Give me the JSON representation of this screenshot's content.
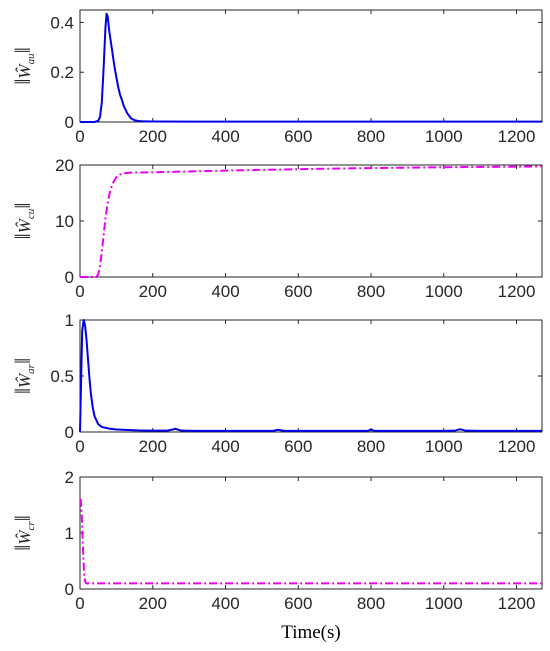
{
  "chart_data": [
    {
      "type": "line",
      "ylabel": {
        "base": "W",
        "sub": "au"
      },
      "xlim": [
        0,
        1270
      ],
      "ylim": [
        0,
        0.45
      ],
      "xticks": [
        0,
        200,
        400,
        600,
        800,
        1000,
        1200
      ],
      "yticks": [
        0,
        0.2,
        0.4
      ],
      "ytick_labels": [
        "0",
        "0.2",
        "0.4"
      ],
      "series": [
        {
          "color": "#0000ee",
          "style": "solid",
          "x": [
            0,
            40,
            50,
            55,
            60,
            65,
            70,
            73,
            76,
            80,
            85,
            90,
            95,
            100,
            105,
            110,
            115,
            120,
            130,
            140,
            150,
            160,
            170,
            200,
            300,
            400,
            600,
            800,
            1000,
            1270
          ],
          "y": [
            0,
            0,
            0.005,
            0.02,
            0.08,
            0.22,
            0.38,
            0.435,
            0.425,
            0.37,
            0.32,
            0.27,
            0.22,
            0.18,
            0.14,
            0.11,
            0.09,
            0.065,
            0.035,
            0.015,
            0.007,
            0.004,
            0.003,
            0.002,
            0.0015,
            0.0015,
            0.0015,
            0.0015,
            0.0015,
            0.0015
          ]
        }
      ]
    },
    {
      "type": "line",
      "ylabel": {
        "base": "W",
        "sub": "cu"
      },
      "xlim": [
        0,
        1270
      ],
      "ylim": [
        0,
        20
      ],
      "xticks": [
        0,
        200,
        400,
        600,
        800,
        1000,
        1200
      ],
      "yticks": [
        0,
        10,
        20
      ],
      "ytick_labels": [
        "0",
        "10",
        "20"
      ],
      "series": [
        {
          "color": "#ee00ee",
          "style": "dashdot",
          "x": [
            0,
            45,
            50,
            55,
            60,
            65,
            70,
            75,
            80,
            85,
            90,
            95,
            100,
            110,
            120,
            130,
            150,
            200,
            300,
            400,
            600,
            800,
            1000,
            1200,
            1270
          ],
          "y": [
            0,
            0,
            0.5,
            2,
            4.5,
            7.5,
            10.5,
            12.8,
            14.6,
            15.8,
            16.7,
            17.3,
            17.8,
            18.3,
            18.5,
            18.6,
            18.65,
            18.7,
            18.85,
            19.0,
            19.25,
            19.45,
            19.6,
            19.7,
            19.75
          ]
        }
      ]
    },
    {
      "type": "line",
      "ylabel": {
        "base": "W",
        "sub": "ar"
      },
      "xlim": [
        0,
        1270
      ],
      "ylim": [
        0,
        1
      ],
      "xticks": [
        0,
        200,
        400,
        600,
        800,
        1000,
        1200
      ],
      "yticks": [
        0,
        0.5,
        1
      ],
      "ytick_labels": [
        "0",
        "0.5",
        "1"
      ],
      "series": [
        {
          "color": "#0000ee",
          "style": "solid",
          "x": [
            0,
            3,
            6,
            10,
            14,
            18,
            22,
            26,
            30,
            35,
            40,
            50,
            60,
            80,
            100,
            130,
            160,
            200,
            240,
            255,
            262,
            270,
            280,
            320,
            400,
            500,
            530,
            545,
            560,
            600,
            700,
            790,
            800,
            810,
            820,
            900,
            1000,
            1030,
            1045,
            1060,
            1100,
            1200,
            1270
          ],
          "y": [
            0,
            0.45,
            0.9,
            1.0,
            0.95,
            0.82,
            0.65,
            0.48,
            0.34,
            0.22,
            0.14,
            0.07,
            0.045,
            0.03,
            0.022,
            0.018,
            0.014,
            0.012,
            0.012,
            0.022,
            0.03,
            0.02,
            0.012,
            0.01,
            0.01,
            0.01,
            0.01,
            0.02,
            0.01,
            0.01,
            0.01,
            0.01,
            0.022,
            0.01,
            0.01,
            0.01,
            0.01,
            0.012,
            0.025,
            0.012,
            0.01,
            0.01,
            0.01
          ]
        }
      ]
    },
    {
      "type": "line",
      "ylabel": {
        "base": "W",
        "sub": "cr"
      },
      "xlabel": "Time(s)",
      "xlim": [
        0,
        1270
      ],
      "ylim": [
        0,
        2
      ],
      "xticks": [
        0,
        200,
        400,
        600,
        800,
        1000,
        1200
      ],
      "yticks": [
        0,
        1,
        2
      ],
      "ytick_labels": [
        "0",
        "1",
        "2"
      ],
      "series": [
        {
          "color": "#ee00ee",
          "style": "dashdot",
          "x": [
            0,
            2,
            5,
            8,
            11,
            14,
            17,
            20,
            30,
            100,
            400,
            800,
            1200,
            1270
          ],
          "y": [
            1.6,
            1.6,
            1.3,
            0.75,
            0.3,
            0.14,
            0.1,
            0.1,
            0.1,
            0.1,
            0.1,
            0.1,
            0.1,
            0.1
          ]
        }
      ]
    }
  ]
}
